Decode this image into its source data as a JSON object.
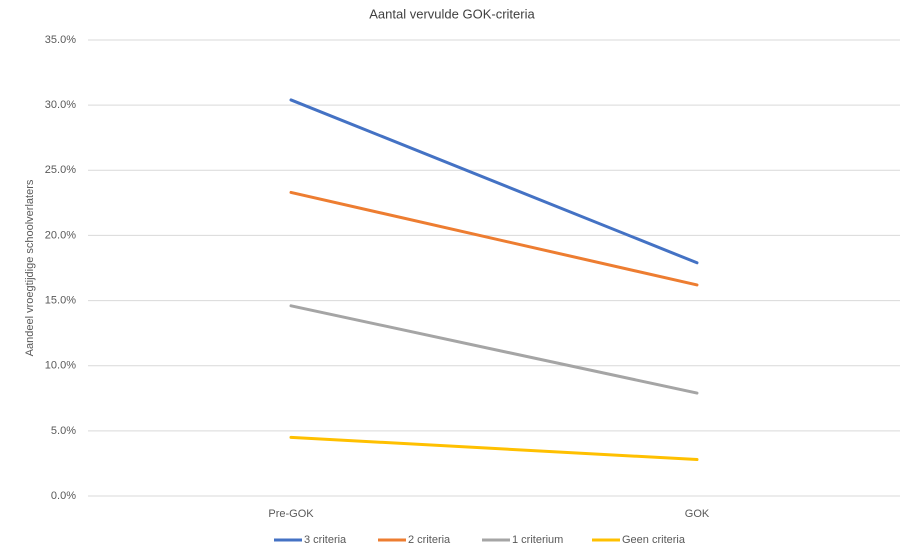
{
  "chart_data": {
    "type": "line",
    "title": "Aantal vervulde GOK-criteria",
    "y_label": "Aandeel vroegtijdige schoolverlaters",
    "categories": [
      "Pre-GOK",
      "GOK"
    ],
    "series": [
      {
        "name": "3 criteria",
        "color": "#4472c4",
        "values": [
          30.4,
          17.9
        ]
      },
      {
        "name": "2 criteria",
        "color": "#ed7d31",
        "values": [
          23.3,
          16.2
        ]
      },
      {
        "name": "1 criterium",
        "color": "#a5a5a5",
        "values": [
          14.6,
          7.9
        ]
      },
      {
        "name": "Geen criteria",
        "color": "#ffc000",
        "values": [
          4.5,
          2.8
        ]
      }
    ],
    "ylim": [
      0,
      35
    ],
    "yticks": [
      {
        "value": 0,
        "label": "0.0%"
      },
      {
        "value": 5,
        "label": "5.0%"
      },
      {
        "value": 10,
        "label": "10.0%"
      },
      {
        "value": 15,
        "label": "15.0%"
      },
      {
        "value": 20,
        "label": "20.0%"
      },
      {
        "value": 25,
        "label": "25.0%"
      },
      {
        "value": 30,
        "label": "30.0%"
      },
      {
        "value": 35,
        "label": "35.0%"
      }
    ],
    "grid": true,
    "legend": "bottom"
  }
}
